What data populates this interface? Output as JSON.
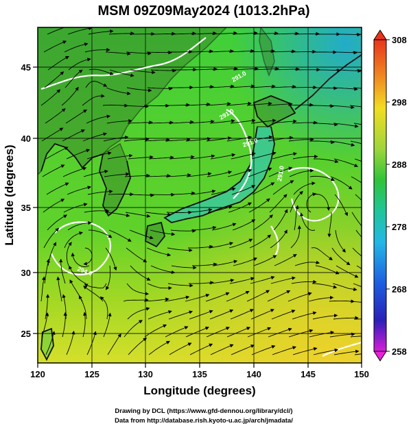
{
  "title": "MSM 09Z09May2024 (1013.2hPa)",
  "x_axis_label": "Longitude (degrees)",
  "y_axis_label": "Latitude  (degrees)",
  "x_ticks": [
    "120",
    "125",
    "130",
    "135",
    "140",
    "145",
    "150"
  ],
  "y_ticks": [
    "25",
    "30",
    "35",
    "40",
    "45"
  ],
  "colorbar_ticks": [
    "308",
    "298",
    "288",
    "278",
    "268",
    "258"
  ],
  "contour_labels": [
    "291.0",
    "291.0",
    "291.0",
    "291.0",
    "294.0"
  ],
  "credit_line_1": "Drawing by DCL (https://www.gfd-dennou.org/library/dcl/)",
  "credit_line_2": "Data from http://database.rish.kyoto-u.ac.jp/arch/jmadata/",
  "colors": {
    "land": "#2e2e2e",
    "contour": "#ffffff",
    "streamline": "#000000"
  }
}
